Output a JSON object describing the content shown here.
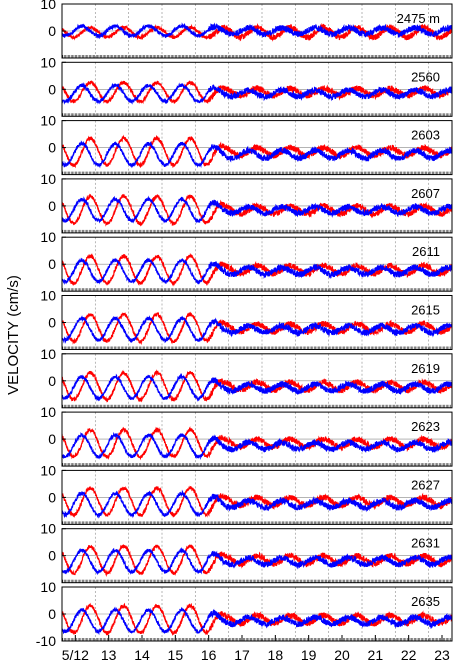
{
  "chart_data": {
    "type": "line",
    "ylabel": "VELOCITY (cm/s)",
    "ylim": [
      -10,
      10
    ],
    "yticks": [
      10,
      0,
      -10
    ],
    "xlim": [
      11.6,
      23.3
    ],
    "xtick_labels": [
      {
        "day": 12,
        "label": "5/12"
      },
      {
        "day": 13,
        "label": "13"
      },
      {
        "day": 14,
        "label": "14"
      },
      {
        "day": 15,
        "label": "15"
      },
      {
        "day": 16,
        "label": "16"
      },
      {
        "day": 17,
        "label": "17"
      },
      {
        "day": 18,
        "label": "18"
      },
      {
        "day": 19,
        "label": "19"
      },
      {
        "day": 20,
        "label": "20"
      },
      {
        "day": 21,
        "label": "21"
      },
      {
        "day": 22,
        "label": "22"
      },
      {
        "day": 23,
        "label": "23"
      }
    ],
    "vertical_gridlines_days": [
      12.6,
      13.6,
      14.6,
      15.6,
      16.6,
      17.6,
      18.6,
      19.6,
      20.6,
      21.6,
      22.6
    ],
    "series_colors": {
      "red": "#ff0000",
      "blue": "#0000ff"
    },
    "panels": [
      {
        "label": "2475 m",
        "red": {
          "amp_early": 1.8,
          "amp_late": 1.8,
          "offset": -0.5,
          "phase": 0.0
        },
        "blue": {
          "amp_early": 1.8,
          "amp_late": 1.2,
          "offset": 0.0,
          "phase": 1.6
        }
      },
      {
        "label": "2560",
        "red": {
          "amp_early": 3.5,
          "amp_late": 1.3,
          "offset": -1.0,
          "phase": 0.0
        },
        "blue": {
          "amp_early": 3.0,
          "amp_late": 1.2,
          "offset": -1.5,
          "phase": 1.6
        }
      },
      {
        "label": "2603",
        "red": {
          "amp_early": 5.0,
          "amp_late": 1.5,
          "offset": -1.5,
          "phase": 0.0
        },
        "blue": {
          "amp_early": 4.0,
          "amp_late": 1.5,
          "offset": -2.5,
          "phase": 1.6
        }
      },
      {
        "label": "2607",
        "red": {
          "amp_early": 5.0,
          "amp_late": 1.5,
          "offset": -1.5,
          "phase": 0.0
        },
        "blue": {
          "amp_early": 4.0,
          "amp_late": 1.2,
          "offset": -1.5,
          "phase": 1.6
        }
      },
      {
        "label": "2611",
        "red": {
          "amp_early": 5.0,
          "amp_late": 1.5,
          "offset": -2.0,
          "phase": 0.0
        },
        "blue": {
          "amp_early": 4.0,
          "amp_late": 1.3,
          "offset": -2.5,
          "phase": 1.6
        }
      },
      {
        "label": "2615",
        "red": {
          "amp_early": 5.0,
          "amp_late": 1.5,
          "offset": -2.0,
          "phase": 0.0
        },
        "blue": {
          "amp_early": 4.0,
          "amp_late": 1.3,
          "offset": -2.5,
          "phase": 1.6
        }
      },
      {
        "label": "2619",
        "red": {
          "amp_early": 5.0,
          "amp_late": 1.5,
          "offset": -2.0,
          "phase": 0.0
        },
        "blue": {
          "amp_early": 4.0,
          "amp_late": 1.3,
          "offset": -2.5,
          "phase": 1.6
        }
      },
      {
        "label": "2623",
        "red": {
          "amp_early": 5.0,
          "amp_late": 1.5,
          "offset": -1.5,
          "phase": 0.0
        },
        "blue": {
          "amp_early": 4.0,
          "amp_late": 1.3,
          "offset": -2.5,
          "phase": 1.6
        }
      },
      {
        "label": "2627",
        "red": {
          "amp_early": 5.0,
          "amp_late": 1.5,
          "offset": -1.5,
          "phase": 0.0
        },
        "blue": {
          "amp_early": 4.0,
          "amp_late": 1.3,
          "offset": -2.5,
          "phase": 1.6
        }
      },
      {
        "label": "2631",
        "red": {
          "amp_early": 5.0,
          "amp_late": 1.5,
          "offset": -1.5,
          "phase": 0.0
        },
        "blue": {
          "amp_early": 4.0,
          "amp_late": 1.3,
          "offset": -2.0,
          "phase": 1.6
        }
      },
      {
        "label": "2635",
        "red": {
          "amp_early": 5.0,
          "amp_late": 1.5,
          "offset": -2.0,
          "phase": 0.0
        },
        "blue": {
          "amp_early": 4.0,
          "amp_late": 1.3,
          "offset": -2.5,
          "phase": 1.6
        }
      }
    ]
  }
}
